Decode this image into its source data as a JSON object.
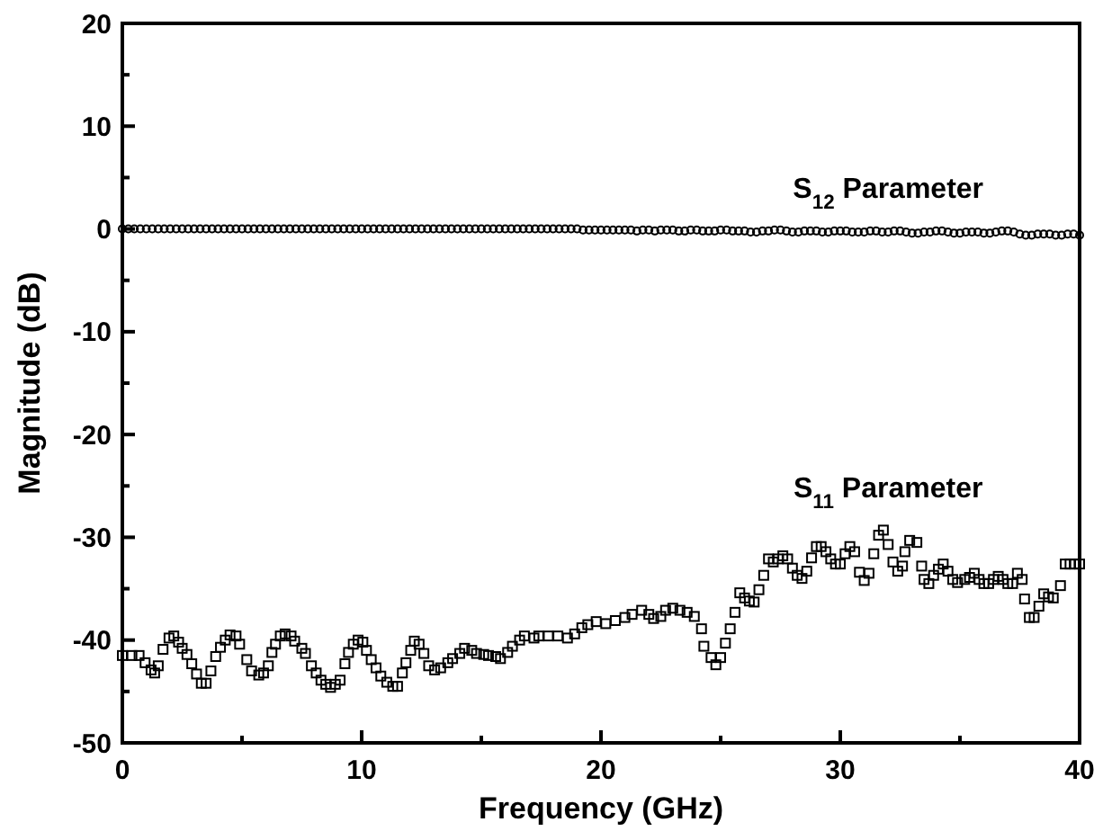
{
  "chart_data": {
    "type": "scatter",
    "xlabel": "Frequency (GHz)",
    "ylabel": "Magnitude (dB)",
    "xlim": [
      0,
      40
    ],
    "ylim": [
      -50,
      20
    ],
    "xticks": [
      0,
      {
        "value": 5,
        "label": null
      },
      10,
      {
        "value": 15,
        "label": null
      },
      20,
      {
        "value": 25,
        "label": null
      },
      30,
      {
        "value": 35,
        "label": null
      },
      40
    ],
    "yticks": [
      -50,
      {
        "value": -45,
        "label": null
      },
      -40,
      {
        "value": -35,
        "label": null
      },
      -30,
      {
        "value": -25,
        "label": null
      },
      -20,
      {
        "value": -15,
        "label": null
      },
      -10,
      {
        "value": -5,
        "label": null
      },
      0,
      {
        "value": 5,
        "label": null
      },
      10,
      {
        "value": 15,
        "label": null
      },
      20
    ],
    "grid": false,
    "series": [
      {
        "name": "S$_{12}$ Parameter",
        "color": "#000000",
        "marker": "circle",
        "x": [
          0,
          0.25,
          0.5,
          0.75,
          1,
          1.25,
          1.5,
          1.75,
          2,
          2.25,
          2.5,
          2.75,
          3,
          3.25,
          3.5,
          3.75,
          4,
          4.25,
          4.5,
          4.75,
          5,
          5.25,
          5.5,
          5.75,
          6,
          6.25,
          6.5,
          6.75,
          7,
          7.25,
          7.5,
          7.75,
          8,
          8.25,
          8.5,
          8.75,
          9,
          9.25,
          9.5,
          9.75,
          10,
          10.25,
          10.5,
          10.75,
          11,
          11.25,
          11.5,
          11.75,
          12,
          12.25,
          12.5,
          12.75,
          13,
          13.25,
          13.5,
          13.75,
          14,
          14.25,
          14.5,
          14.75,
          15,
          15.25,
          15.5,
          15.75,
          16,
          16.25,
          16.5,
          16.75,
          17,
          17.25,
          17.5,
          17.75,
          18,
          18.25,
          18.5,
          18.75,
          19,
          19.25,
          19.5,
          19.75,
          20,
          20.25,
          20.5,
          20.75,
          21,
          21.25,
          21.5,
          21.75,
          22,
          22.25,
          22.5,
          22.75,
          23,
          23.25,
          23.5,
          23.75,
          24,
          24.25,
          24.5,
          24.75,
          25,
          25.25,
          25.5,
          25.75,
          26,
          26.25,
          26.5,
          26.75,
          27,
          27.25,
          27.5,
          27.75,
          28,
          28.25,
          28.5,
          28.75,
          29,
          29.25,
          29.5,
          29.75,
          30,
          30.25,
          30.5,
          30.75,
          31,
          31.25,
          31.5,
          31.75,
          32,
          32.25,
          32.5,
          32.75,
          33,
          33.25,
          33.5,
          33.75,
          34,
          34.25,
          34.5,
          34.75,
          35,
          35.25,
          35.5,
          35.75,
          36,
          36.25,
          36.5,
          36.75,
          37,
          37.25,
          37.5,
          37.75,
          38,
          38.25,
          38.5,
          38.75,
          39,
          39.25,
          39.5,
          39.75,
          40
        ],
        "values": [
          0,
          0,
          0,
          0,
          0,
          0,
          0,
          0,
          0,
          0,
          0,
          0,
          0,
          0,
          0,
          0,
          0,
          0,
          0,
          0,
          0,
          0,
          0,
          0,
          0,
          0,
          0,
          0,
          0,
          0,
          0,
          0,
          0,
          0,
          0,
          0,
          0,
          0,
          0,
          0,
          0,
          0,
          0,
          0,
          0,
          0,
          0,
          0,
          0,
          0,
          0,
          0,
          0,
          0,
          0,
          0,
          0,
          0,
          0,
          0,
          0,
          0,
          0,
          0,
          0,
          0,
          0,
          0,
          0,
          0,
          0,
          0,
          0,
          0,
          0,
          0,
          0,
          -0.1,
          -0.1,
          -0.1,
          -0.1,
          -0.1,
          -0.1,
          -0.1,
          -0.1,
          -0.1,
          -0.2,
          -0.1,
          -0.1,
          -0.2,
          -0.1,
          -0.1,
          -0.1,
          -0.2,
          -0.2,
          -0.1,
          -0.1,
          -0.2,
          -0.2,
          -0.2,
          -0.1,
          -0.1,
          -0.2,
          -0.2,
          -0.2,
          -0.3,
          -0.3,
          -0.2,
          -0.2,
          -0.1,
          -0.1,
          -0.2,
          -0.3,
          -0.3,
          -0.2,
          -0.2,
          -0.2,
          -0.3,
          -0.3,
          -0.2,
          -0.2,
          -0.2,
          -0.3,
          -0.3,
          -0.3,
          -0.2,
          -0.2,
          -0.3,
          -0.3,
          -0.2,
          -0.2,
          -0.3,
          -0.4,
          -0.4,
          -0.3,
          -0.3,
          -0.2,
          -0.2,
          -0.3,
          -0.4,
          -0.4,
          -0.3,
          -0.3,
          -0.3,
          -0.4,
          -0.4,
          -0.3,
          -0.2,
          -0.2,
          -0.3,
          -0.5,
          -0.6,
          -0.6,
          -0.5,
          -0.5,
          -0.5,
          -0.6,
          -0.6,
          -0.5,
          -0.5,
          -0.6
        ]
      },
      {
        "name": "S$_{11}$ Parameter",
        "color": "#000000",
        "marker": "square",
        "x": [
          0,
          0.4,
          0.7,
          0.95,
          1.2,
          1.35,
          1.5,
          1.7,
          1.95,
          2.15,
          2.35,
          2.5,
          2.7,
          2.9,
          3.1,
          3.3,
          3.5,
          3.7,
          3.9,
          4.1,
          4.3,
          4.5,
          4.75,
          4.9,
          5.2,
          5.4,
          5.7,
          5.9,
          6.1,
          6.25,
          6.4,
          6.6,
          6.8,
          7.05,
          7.2,
          7.5,
          7.65,
          7.9,
          8.1,
          8.3,
          8.5,
          8.7,
          8.9,
          9.1,
          9.3,
          9.45,
          9.65,
          9.85,
          10.05,
          10.2,
          10.4,
          10.6,
          10.8,
          11.05,
          11.3,
          11.5,
          11.7,
          11.85,
          12.05,
          12.2,
          12.4,
          12.6,
          12.8,
          13.05,
          13.3,
          13.6,
          13.8,
          14.1,
          14.3,
          14.6,
          14.8,
          15.1,
          15.3,
          15.6,
          15.8,
          16.1,
          16.3,
          16.6,
          16.8,
          17.2,
          17.4,
          17.8,
          18.2,
          18.6,
          18.9,
          19.2,
          19.45,
          19.8,
          20.2,
          20.6,
          21,
          21.3,
          21.7,
          22,
          22.2,
          22.5,
          22.7,
          23,
          23.3,
          23.6,
          23.9,
          24.2,
          24.3,
          24.6,
          24.8,
          25,
          25.2,
          25.4,
          25.6,
          25.8,
          26,
          26.2,
          26.4,
          26.6,
          26.8,
          27,
          27.2,
          27.4,
          27.6,
          27.8,
          28,
          28.2,
          28.4,
          28.6,
          28.8,
          29,
          29.2,
          29.4,
          29.6,
          29.8,
          30,
          30.2,
          30.4,
          30.6,
          30.8,
          31,
          31.2,
          31.4,
          31.6,
          31.8,
          32,
          32.2,
          32.4,
          32.6,
          32.7,
          32.9,
          33.2,
          33.4,
          33.5,
          33.7,
          33.9,
          34.1,
          34.3,
          34.5,
          34.7,
          34.9,
          35.2,
          35.4,
          35.6,
          35.8,
          36,
          36.2,
          36.4,
          36.6,
          36.8,
          37,
          37.2,
          37.4,
          37.6,
          37.7,
          37.9,
          38.1,
          38.3,
          38.5,
          38.7,
          38.9,
          39.2,
          39.4,
          39.6,
          39.8,
          40
        ],
        "values": [
          -41.5,
          -41.5,
          -41.5,
          -42.2,
          -42.9,
          -43.2,
          -42.5,
          -40.9,
          -39.8,
          -39.6,
          -40.2,
          -40.8,
          -41.4,
          -42.3,
          -43.3,
          -44.2,
          -44.2,
          -43,
          -41.6,
          -40.7,
          -40,
          -39.5,
          -39.6,
          -40.4,
          -41.9,
          -43,
          -43.4,
          -43.2,
          -42.5,
          -41.2,
          -40.4,
          -39.6,
          -39.4,
          -39.6,
          -40.1,
          -40.8,
          -41.3,
          -42.5,
          -43.2,
          -43.9,
          -44.3,
          -44.6,
          -44.3,
          -43.9,
          -42.3,
          -41.2,
          -40.4,
          -40,
          -40.2,
          -41,
          -41.9,
          -42.7,
          -43.5,
          -44.1,
          -44.5,
          -44.5,
          -43.2,
          -42.2,
          -41,
          -40.1,
          -40.4,
          -41.3,
          -42.5,
          -42.9,
          -42.7,
          -42.2,
          -41.8,
          -41.3,
          -40.8,
          -41,
          -41.3,
          -41.4,
          -41.5,
          -41.6,
          -41.8,
          -41.2,
          -40.6,
          -40,
          -39.6,
          -39.8,
          -39.6,
          -39.6,
          -39.6,
          -39.8,
          -39.4,
          -38.8,
          -38.5,
          -38.2,
          -38.4,
          -38.1,
          -37.8,
          -37.5,
          -37.1,
          -37.5,
          -37.9,
          -37.7,
          -37.1,
          -36.9,
          -37.1,
          -37.3,
          -37.7,
          -38.9,
          -40.6,
          -41.7,
          -42.4,
          -41.7,
          -40.3,
          -38.9,
          -37.3,
          -35.4,
          -35.9,
          -36.2,
          -36.3,
          -35.1,
          -33.7,
          -32.1,
          -32.4,
          -32.1,
          -31.8,
          -32.1,
          -33,
          -33.7,
          -34,
          -33.3,
          -32,
          -30.9,
          -30.9,
          -31.4,
          -32.1,
          -32.6,
          -32.6,
          -31.6,
          -30.9,
          -31.4,
          -33.4,
          -34.2,
          -33.5,
          -31.6,
          -29.8,
          -29.3,
          -30.7,
          -32.4,
          -33.3,
          -32.8,
          -31.4,
          -30.3,
          -30.5,
          -32.8,
          -34.1,
          -34.5,
          -33.7,
          -33.1,
          -32.6,
          -33.3,
          -34.1,
          -34.4,
          -34.1,
          -33.9,
          -33.5,
          -34.1,
          -34.5,
          -34.5,
          -34.1,
          -33.8,
          -34.1,
          -34.5,
          -34.5,
          -33.5,
          -34.1,
          -36,
          -37.8,
          -37.8,
          -36.7,
          -35.5,
          -35.8,
          -35.9,
          -34.7,
          -32.6,
          -32.6,
          -32.6,
          -32.6
        ]
      }
    ]
  }
}
